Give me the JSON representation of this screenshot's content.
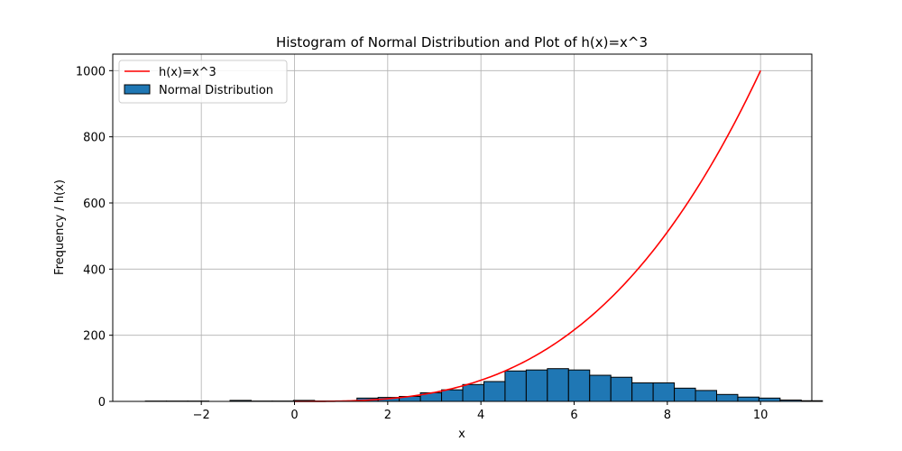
{
  "chart_data": {
    "type": "bar",
    "title": "Histogram of Normal Distribution and Plot of h(x)=x^3",
    "xlabel": "x",
    "ylabel": "Frequency / h(x)",
    "xlim": [
      -3.9,
      11.1
    ],
    "ylim": [
      0,
      1050
    ],
    "xticks": [
      -2,
      0,
      2,
      4,
      6,
      8,
      10
    ],
    "xtick_labels": [
      "−2",
      "0",
      "2",
      "4",
      "6",
      "8",
      "10"
    ],
    "yticks": [
      0,
      200,
      400,
      600,
      800,
      1000
    ],
    "ytick_labels": [
      "0",
      "200",
      "400",
      "600",
      "800",
      "1000"
    ],
    "grid": true,
    "legend_position": "top-left",
    "series": [
      {
        "name": "h(x)=x^3",
        "kind": "line",
        "color": "#ff0000",
        "function": "x^3",
        "x_range": [
          0,
          10
        ]
      },
      {
        "name": "Normal Distribution",
        "kind": "histogram",
        "color": "#1f77b4",
        "edge_color": "#000000",
        "bin_start": -3.2,
        "bin_width": 0.454,
        "values": [
          1,
          1,
          1,
          0,
          3,
          1,
          1,
          3,
          1,
          0,
          10,
          12,
          15,
          26,
          35,
          51,
          60,
          92,
          95,
          99,
          95,
          79,
          73,
          56,
          56,
          40,
          33,
          21,
          13,
          10,
          4,
          2
        ]
      }
    ]
  }
}
